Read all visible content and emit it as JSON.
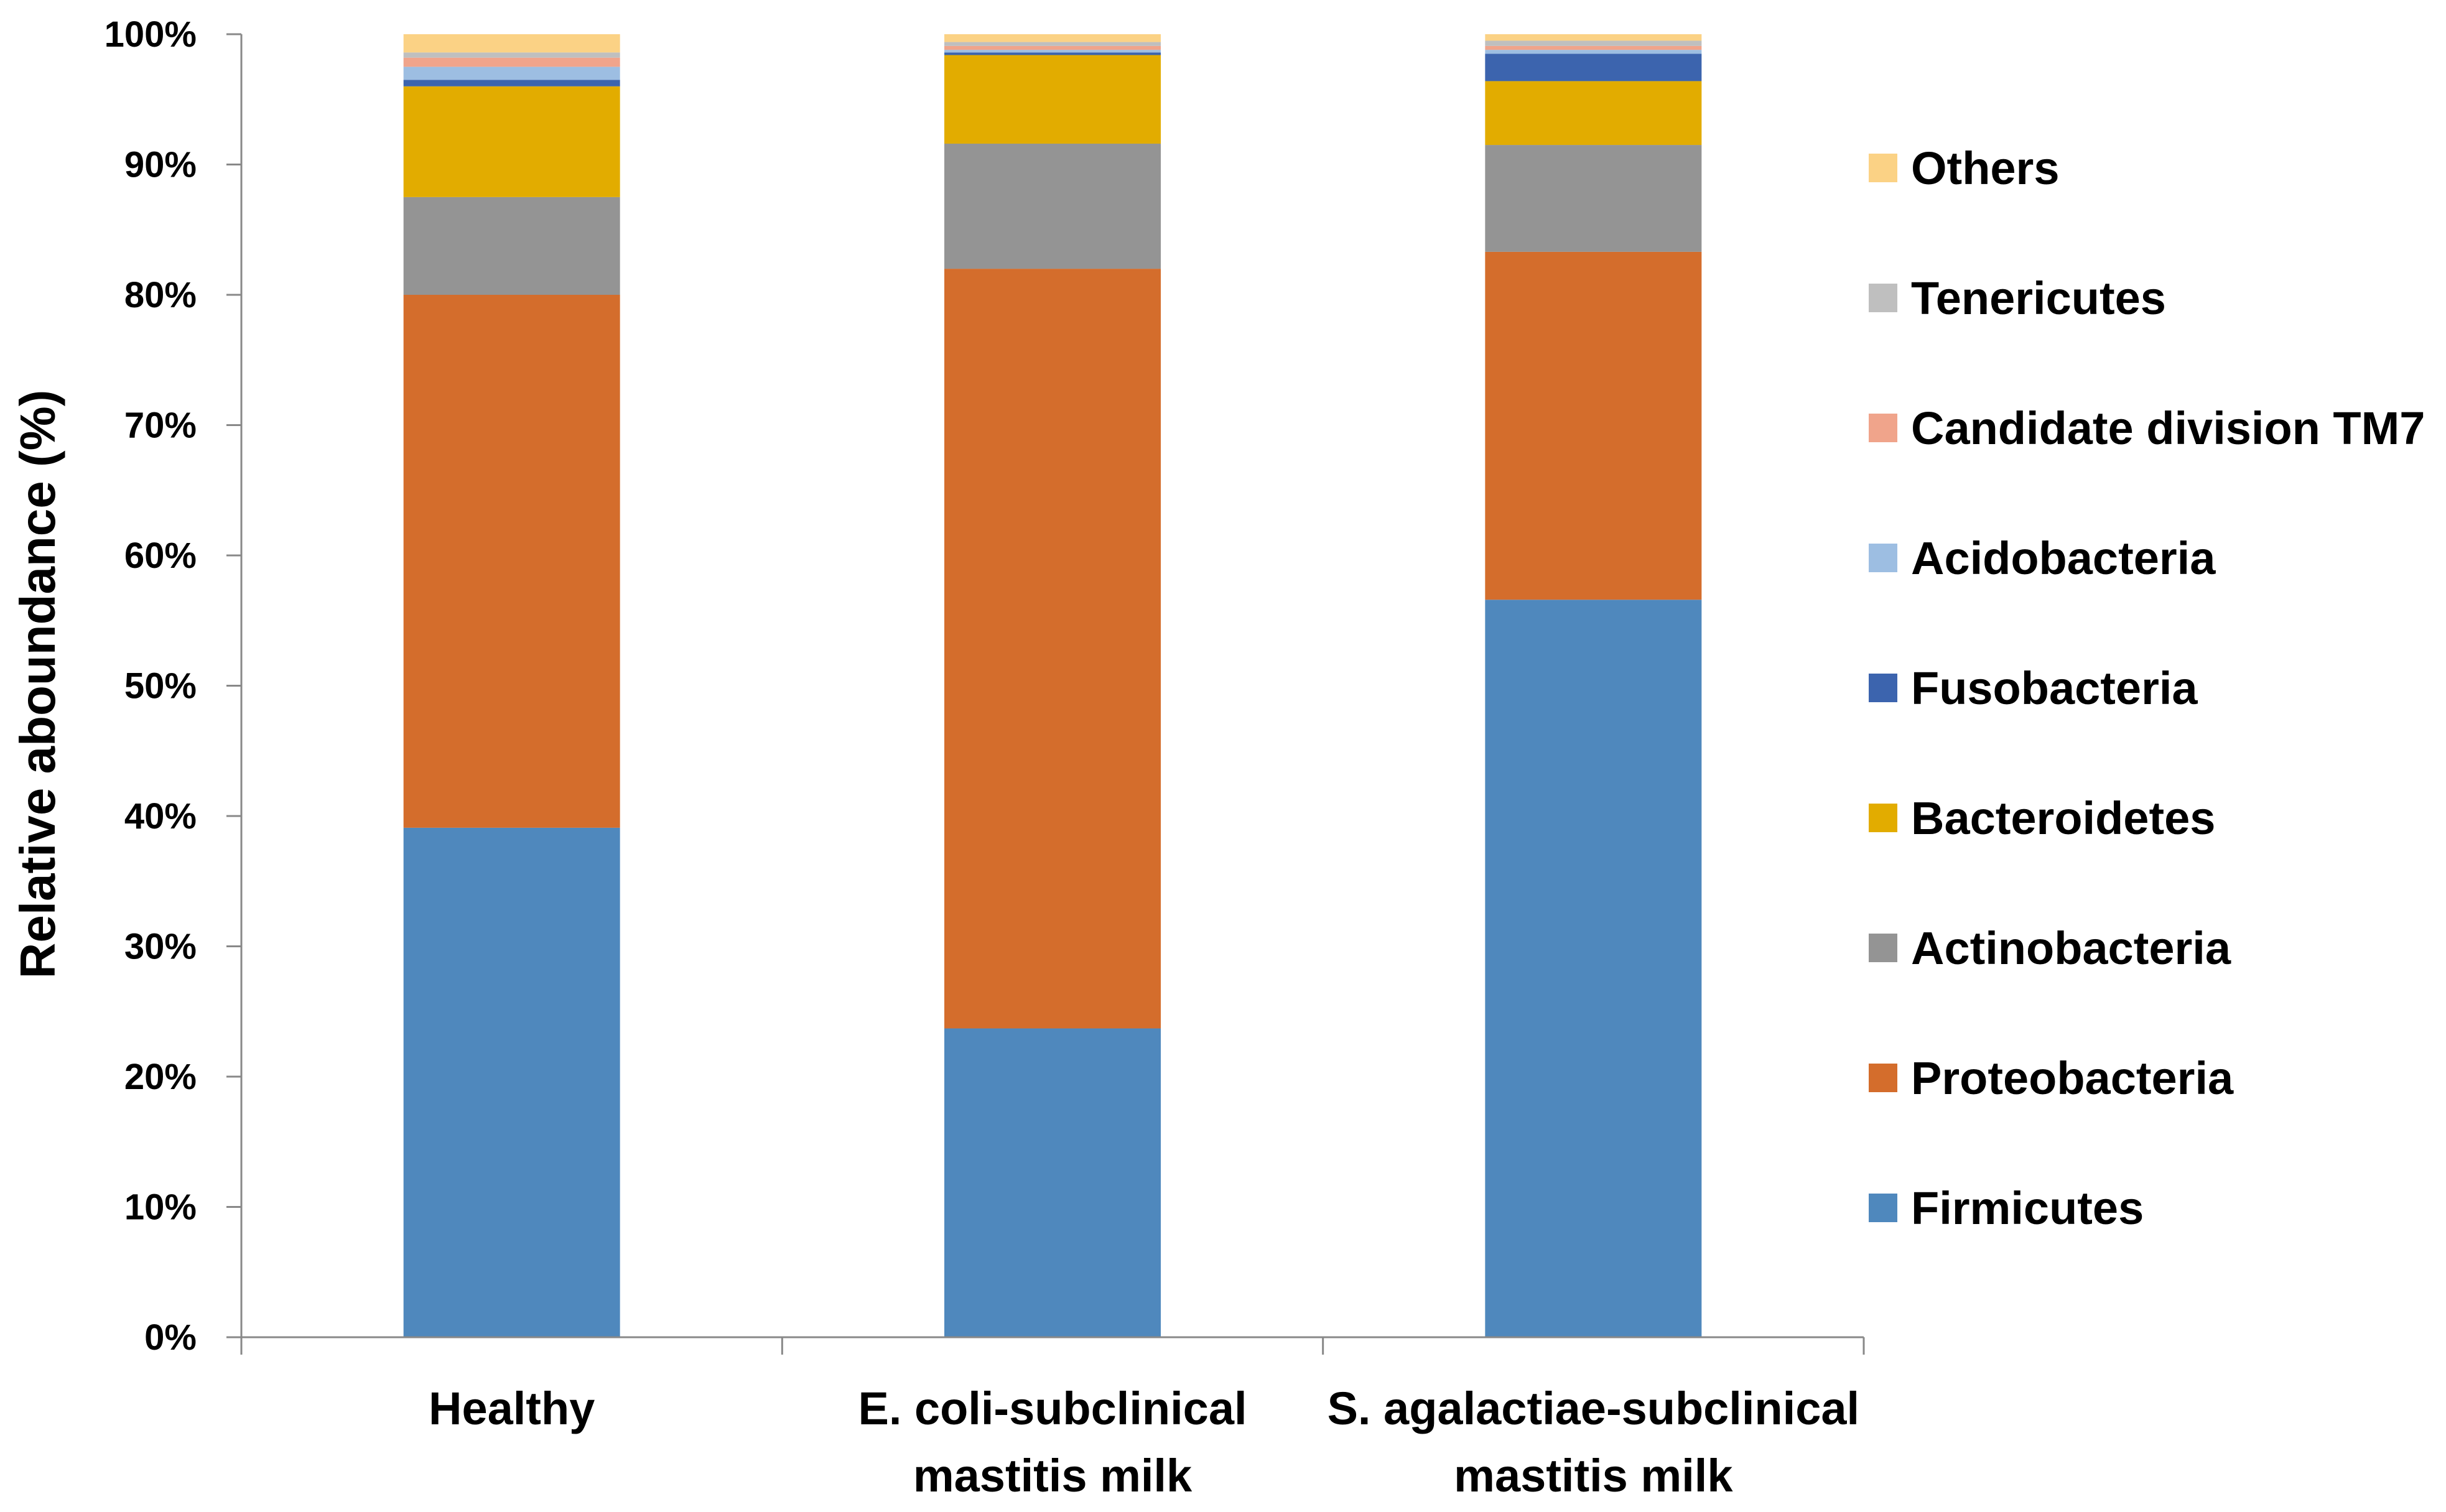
{
  "chart_data": {
    "type": "bar",
    "stacked": true,
    "title": "",
    "xlabel": "",
    "ylabel": "Relative aboundance (%)",
    "ylim": [
      0,
      100
    ],
    "yticks": [
      "0%",
      "10%",
      "20%",
      "30%",
      "40%",
      "50%",
      "60%",
      "70%",
      "80%",
      "90%",
      "100%"
    ],
    "categories": [
      [
        "Healthy"
      ],
      [
        "E. coli-subclinical",
        "mastitis milk"
      ],
      [
        "S. agalactiae-subclinical",
        "mastitis milk"
      ]
    ],
    "series": [
      {
        "name": "Firmicutes",
        "color": "#4F88BD",
        "values": [
          39.1,
          23.7,
          56.6
        ]
      },
      {
        "name": "Proteobacteria",
        "color": "#D46D2C",
        "values": [
          40.9,
          58.3,
          26.7
        ]
      },
      {
        "name": "Actinobacteria",
        "color": "#949494",
        "values": [
          7.5,
          9.6,
          8.2
        ]
      },
      {
        "name": "Bacteroidetes",
        "color": "#E2AC00",
        "values": [
          8.5,
          6.8,
          4.9
        ]
      },
      {
        "name": "Fusobacteria",
        "color": "#3C64AE",
        "values": [
          0.5,
          0.2,
          2.1
        ]
      },
      {
        "name": "Acidobacteria",
        "color": "#9DBEE2",
        "values": [
          1.0,
          0.2,
          0.3
        ]
      },
      {
        "name": "Candidate division TM7",
        "color": "#F0A48B",
        "values": [
          0.7,
          0.3,
          0.3
        ]
      },
      {
        "name": "Tenericutes",
        "color": "#BFBFBF",
        "values": [
          0.4,
          0.3,
          0.4
        ]
      },
      {
        "name": "Others",
        "color": "#FBD285",
        "values": [
          1.4,
          0.6,
          0.5
        ]
      }
    ],
    "legend_position": "right",
    "legend_order": "reversed"
  }
}
